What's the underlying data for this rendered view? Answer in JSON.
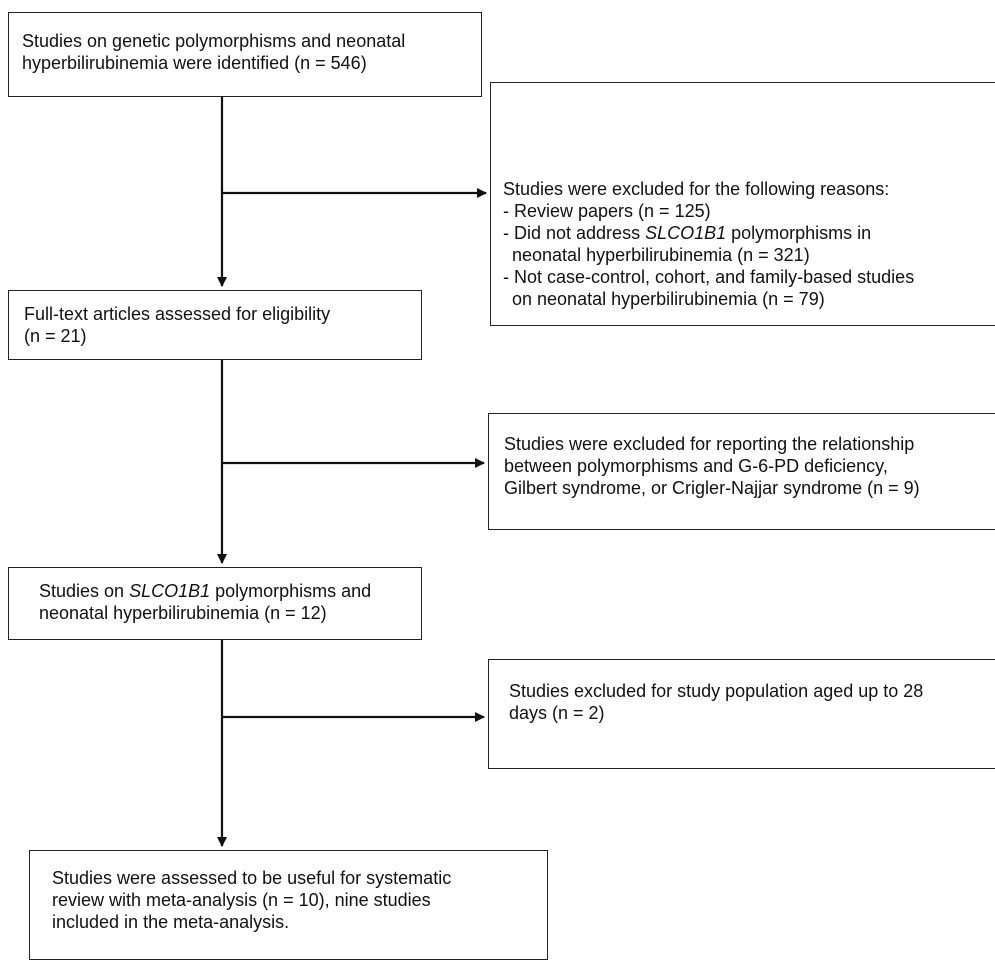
{
  "boxes": {
    "identified": {
      "lines": [
        "Studies on genetic polymorphisms and neonatal",
        "hyperbilirubinemia were identified (n = 546)"
      ]
    },
    "full_text": {
      "lines": [
        "Full-text articles assessed for eligibility",
        "(n = 21)"
      ]
    },
    "slco": {
      "line1_pre": "Studies on ",
      "line1_italic": "SLCO1B1",
      "line1_post": " polymorphisms and",
      "line2": "neonatal hyperbilirubinemia (n = 12)"
    },
    "final": {
      "lines": [
        "Studies were assessed to be useful for systematic",
        "review with meta-analysis (n = 10), nine studies",
        "included in the meta-analysis."
      ]
    }
  },
  "exclusions": {
    "first": {
      "heading": "Studies were excluded for the following reasons:",
      "r1": "- Review papers (n = 125)",
      "r2_pre": "- Did not address ",
      "r2_italic": "SLCO1B1",
      "r2_post": " polymorphisms in",
      "r2_cont": "neonatal hyperbilirubinemia (n = 321)",
      "r3": "- Not case-control, cohort, and family-based studies",
      "r3_cont": "on neonatal hyperbilirubinemia (n = 79)"
    },
    "second": {
      "lines": [
        "Studies were excluded for reporting the relationship",
        "between polymorphisms and G-6-PD deficiency,",
        "Gilbert syndrome, or Crigler-Najjar syndrome (n = 9)"
      ]
    },
    "third": {
      "lines": [
        "Studies excluded for study population aged up to 28",
        "days (n = 2)"
      ]
    }
  }
}
